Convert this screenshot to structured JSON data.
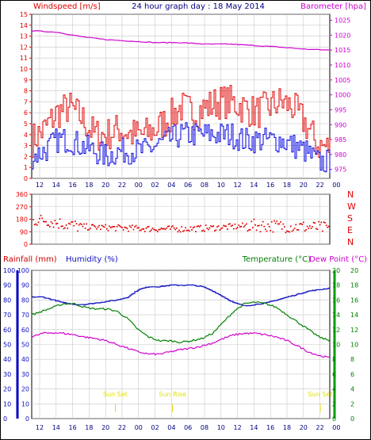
{
  "header": {
    "left_title": "Windspeed [m/s]",
    "center_title": "24 hour graph day : 18 May 2014",
    "right_title": "Barometer [hpa]"
  },
  "colors": {
    "windspeed": "#e00000",
    "gust": "#e00000",
    "wind_avg": "#0000e0",
    "barometer": "#d000d0",
    "direction": "#e00000",
    "humidity": "#1010c0",
    "temperature": "#008000",
    "dewpoint": "#d000d0",
    "rainfall": "#d00000",
    "sun_marker": "#e0e000",
    "grid": "#c8c8c8",
    "axis": "#000000"
  },
  "time_ticks": [
    "12",
    "14",
    "16",
    "18",
    "20",
    "22",
    "00",
    "02",
    "04",
    "06",
    "08",
    "10",
    "12",
    "14",
    "16",
    "18",
    "20",
    "22",
    "00"
  ],
  "chart_data": [
    {
      "type": "line",
      "id": "wind-barometer",
      "title": "24 hour graph day : 18 May 2014",
      "ylabel": "Windspeed [m/s]",
      "y2label": "Barometer [hpa]",
      "ylim": [
        0,
        15
      ],
      "y2lim": [
        972,
        1027
      ],
      "yticks": [
        0,
        1,
        2,
        3,
        4,
        5,
        6,
        7,
        8,
        9,
        10,
        11,
        12,
        13,
        14,
        15
      ],
      "y2ticks": [
        975,
        980,
        985,
        990,
        995,
        1000,
        1005,
        1010,
        1015,
        1020,
        1025
      ],
      "x_hours": [
        0,
        24
      ],
      "series": [
        {
          "name": "Gust",
          "key": "gust",
          "anchors": [
            [
              0,
              3.5
            ],
            [
              1,
              4.5
            ],
            [
              2,
              6
            ],
            [
              3,
              6.5
            ],
            [
              4,
              5.5
            ],
            [
              5,
              4
            ],
            [
              6,
              4
            ],
            [
              7,
              4.5
            ],
            [
              8,
              4
            ],
            [
              9,
              4
            ],
            [
              10,
              4.5
            ],
            [
              11,
              5.5
            ],
            [
              12,
              6.5
            ],
            [
              13,
              6
            ],
            [
              14,
              6.5
            ],
            [
              15,
              7
            ],
            [
              16,
              7
            ],
            [
              17,
              6.5
            ],
            [
              18,
              6
            ],
            [
              19,
              6.5
            ],
            [
              20,
              7
            ],
            [
              21,
              6.5
            ],
            [
              22,
              5
            ],
            [
              23,
              3
            ],
            [
              24,
              2.8
            ]
          ]
        },
        {
          "name": "Windspeed",
          "key": "wind_avg",
          "anchors": [
            [
              0,
              2
            ],
            [
              1,
              2.5
            ],
            [
              2,
              3.5
            ],
            [
              3,
              3.5
            ],
            [
              4,
              3
            ],
            [
              5,
              2.5
            ],
            [
              6,
              2
            ],
            [
              7,
              2.5
            ],
            [
              8,
              2.5
            ],
            [
              9,
              2.5
            ],
            [
              10,
              3
            ],
            [
              11,
              3.5
            ],
            [
              12,
              4
            ],
            [
              13,
              4
            ],
            [
              14,
              4
            ],
            [
              15,
              4
            ],
            [
              16,
              4
            ],
            [
              17,
              3.5
            ],
            [
              18,
              3.5
            ],
            [
              19,
              3.5
            ],
            [
              20,
              3.5
            ],
            [
              21,
              3
            ],
            [
              22,
              2.5
            ],
            [
              23,
              1.5
            ],
            [
              24,
              1.5
            ]
          ]
        },
        {
          "name": "Barometer",
          "key": "barometer",
          "axis": "y2",
          "anchors": [
            [
              0,
              1021.5
            ],
            [
              2,
              1021
            ],
            [
              4,
              1019.5
            ],
            [
              6,
              1018.5
            ],
            [
              8,
              1018
            ],
            [
              10,
              1017.5
            ],
            [
              12,
              1017.5
            ],
            [
              14,
              1017
            ],
            [
              16,
              1017
            ],
            [
              18,
              1016.5
            ],
            [
              20,
              1016
            ],
            [
              22,
              1015.3
            ],
            [
              24,
              1015
            ]
          ]
        }
      ]
    },
    {
      "type": "scatter",
      "id": "wind-direction",
      "ylabel_right": [
        "N",
        "W",
        "S",
        "E",
        "N"
      ],
      "yticks": [
        0,
        90,
        180,
        270,
        360
      ],
      "ylim": [
        0,
        360
      ],
      "series": [
        {
          "name": "Direction",
          "key": "direction",
          "anchors": [
            [
              0,
              170
            ],
            [
              1,
              175
            ],
            [
              2,
              155
            ],
            [
              3,
              140
            ],
            [
              4,
              125
            ],
            [
              6,
              120
            ],
            [
              8,
              115
            ],
            [
              10,
              110
            ],
            [
              12,
              110
            ],
            [
              14,
              115
            ],
            [
              16,
              125
            ],
            [
              18,
              135
            ],
            [
              20,
              130
            ],
            [
              22,
              125
            ],
            [
              24,
              115
            ]
          ]
        }
      ]
    },
    {
      "type": "line",
      "id": "temp-humidity",
      "ylabel_left": "Rainfall (mm)",
      "ylabel_left2": "Humidity (%)",
      "ylabel_right": "Temperature (°C)",
      "ylabel_right2": "Dew Point (°C)",
      "yticks_left": [
        0,
        10,
        20,
        30,
        40,
        50,
        60,
        70,
        80,
        90,
        100
      ],
      "yticks_right": [
        0,
        2,
        4,
        6,
        8,
        10,
        12,
        14,
        16,
        18,
        20
      ],
      "ylim_left": [
        0,
        100
      ],
      "ylim_right": [
        0,
        20
      ],
      "annotations": [
        {
          "label": "Sun Set",
          "hour": 9.3
        },
        {
          "label": "Sun Rise",
          "hour": 14.6
        },
        {
          "label": "Sun Set",
          "hour": 33.3
        }
      ],
      "series": [
        {
          "name": "Humidity",
          "key": "humidity",
          "anchors": [
            [
              0,
              82
            ],
            [
              1,
              82
            ],
            [
              2,
              80
            ],
            [
              3,
              78
            ],
            [
              4,
              77
            ],
            [
              5,
              77
            ],
            [
              6,
              78
            ],
            [
              7,
              79
            ],
            [
              8,
              80
            ],
            [
              9,
              82
            ],
            [
              10,
              87
            ],
            [
              11,
              89
            ],
            [
              12,
              89
            ],
            [
              13,
              90
            ],
            [
              14,
              90
            ],
            [
              15,
              90
            ],
            [
              16,
              89
            ],
            [
              17,
              86
            ],
            [
              18,
              82
            ],
            [
              19,
              78
            ],
            [
              20,
              76
            ],
            [
              21,
              77
            ],
            [
              22,
              78
            ],
            [
              23,
              80
            ],
            [
              24,
              82
            ],
            [
              25,
              84
            ],
            [
              26,
              86
            ],
            [
              27,
              87
            ],
            [
              28,
              88
            ]
          ]
        },
        {
          "name": "Temperature (°C)",
          "key": "temperature",
          "unit": "C",
          "anchors": [
            [
              0,
              14
            ],
            [
              1,
              14.5
            ],
            [
              2,
              15
            ],
            [
              3,
              15.5
            ],
            [
              4,
              15.5
            ],
            [
              5,
              15
            ],
            [
              6,
              14.8
            ],
            [
              7,
              14.8
            ],
            [
              8,
              14.5
            ],
            [
              9,
              13.5
            ],
            [
              10,
              12
            ],
            [
              11,
              11
            ],
            [
              12,
              10.5
            ],
            [
              13,
              10.5
            ],
            [
              14,
              10.3
            ],
            [
              15,
              10.5
            ],
            [
              16,
              10.8
            ],
            [
              17,
              11.5
            ],
            [
              18,
              13
            ],
            [
              19,
              14.5
            ],
            [
              20,
              15.5
            ],
            [
              21,
              15.7
            ],
            [
              22,
              15.5
            ],
            [
              23,
              15
            ],
            [
              24,
              14
            ],
            [
              25,
              13
            ],
            [
              26,
              12
            ],
            [
              27,
              11
            ],
            [
              28,
              10.5
            ]
          ]
        },
        {
          "name": "Dew Point (°C)",
          "key": "dewpoint",
          "unit": "C",
          "anchors": [
            [
              0,
              11
            ],
            [
              1,
              11.5
            ],
            [
              2,
              11.6
            ],
            [
              3,
              11.5
            ],
            [
              4,
              11.3
            ],
            [
              5,
              11
            ],
            [
              6,
              10.8
            ],
            [
              7,
              10.5
            ],
            [
              8,
              10
            ],
            [
              9,
              9.5
            ],
            [
              10,
              9
            ],
            [
              11,
              8.7
            ],
            [
              12,
              8.7
            ],
            [
              13,
              9
            ],
            [
              14,
              9.3
            ],
            [
              15,
              9.5
            ],
            [
              16,
              9.8
            ],
            [
              17,
              10.2
            ],
            [
              18,
              10.8
            ],
            [
              19,
              11.3
            ],
            [
              20,
              11.5
            ],
            [
              21,
              11.5
            ],
            [
              22,
              11.3
            ],
            [
              23,
              11
            ],
            [
              24,
              10.5
            ],
            [
              25,
              9.8
            ],
            [
              26,
              9
            ],
            [
              27,
              8.5
            ],
            [
              28,
              8.2
            ]
          ]
        },
        {
          "name": "Rainfall (mm)",
          "key": "rainfall",
          "anchors": [
            [
              0,
              0
            ],
            [
              28,
              0
            ]
          ]
        }
      ]
    }
  ]
}
